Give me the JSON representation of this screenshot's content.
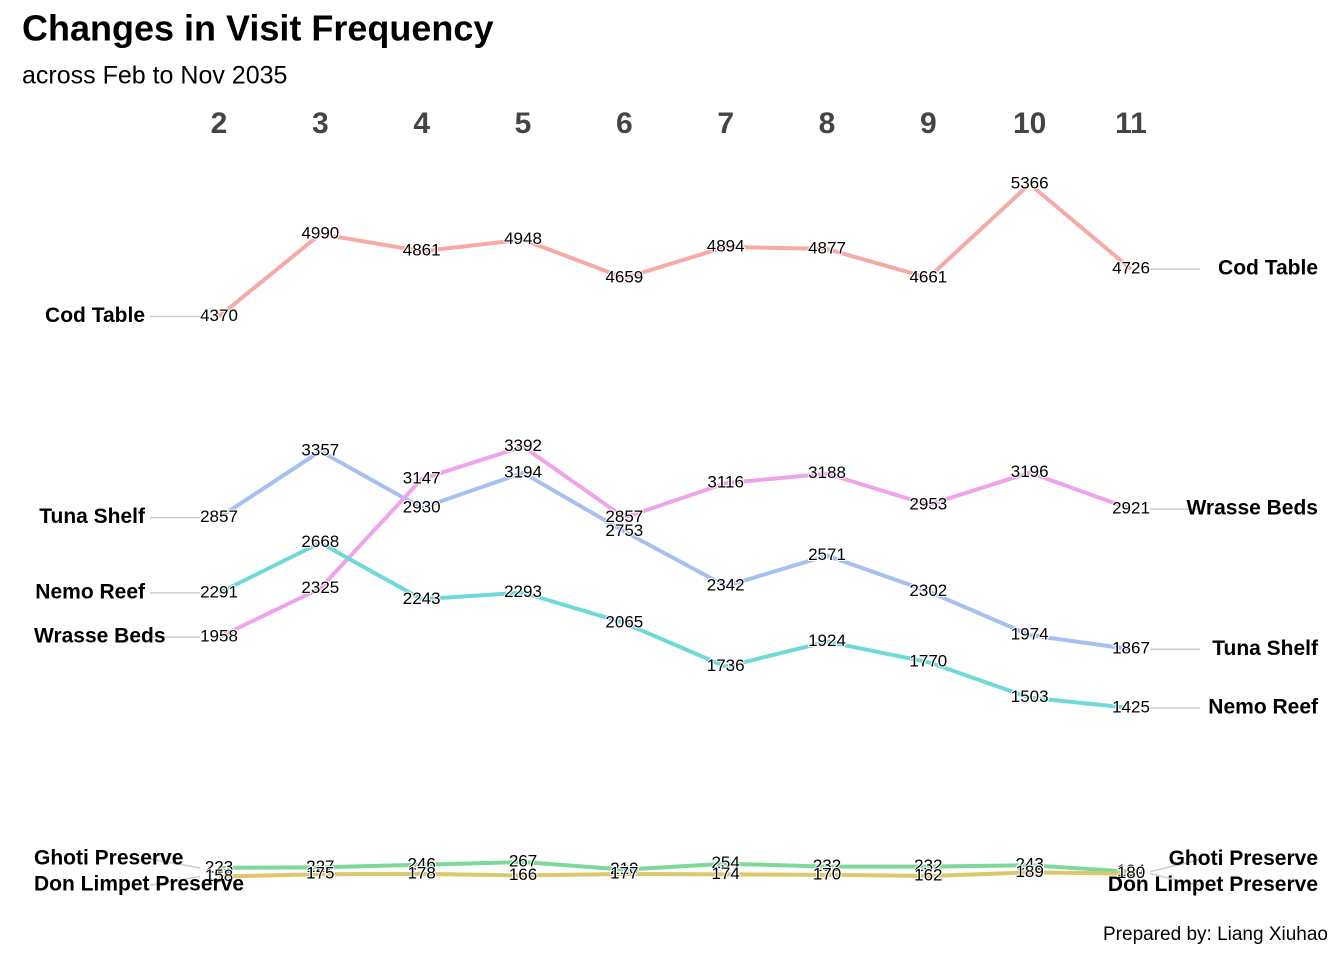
{
  "chart_data": {
    "type": "slope-line",
    "title": "Changes in Visit Frequency",
    "subtitle": "across Feb to Nov 2035",
    "caption": "Prepared by: Liang Xiuhao",
    "x": [
      2,
      3,
      4,
      5,
      6,
      7,
      8,
      9,
      10,
      11
    ],
    "series": [
      {
        "name": "Cod Table",
        "color": "#f6aaa5",
        "values": [
          4370,
          4990,
          4861,
          4948,
          4659,
          4894,
          4877,
          4661,
          5366,
          4726
        ]
      },
      {
        "name": "Tuna Shelf",
        "color": "#a6c0f2",
        "values": [
          2857,
          3357,
          2930,
          3194,
          2753,
          2342,
          2571,
          2302,
          1974,
          1867
        ]
      },
      {
        "name": "Wrasse Beds",
        "color": "#f0a3ea",
        "values": [
          1958,
          2325,
          3147,
          3392,
          2857,
          3116,
          3188,
          2953,
          3196,
          2921
        ]
      },
      {
        "name": "Nemo Reef",
        "color": "#6fd9d9",
        "values": [
          2291,
          2668,
          2243,
          2293,
          2065,
          1736,
          1924,
          1770,
          1503,
          1425
        ]
      },
      {
        "name": "Ghoti Preserve",
        "color": "#7dd89b",
        "values": [
          223,
          227,
          246,
          267,
          210,
          254,
          232,
          232,
          243,
          194
        ]
      },
      {
        "name": "Don Limpet Preserve",
        "color": "#d9c86c",
        "values": [
          158,
          175,
          178,
          166,
          177,
          174,
          170,
          162,
          189,
          180
        ]
      }
    ]
  }
}
